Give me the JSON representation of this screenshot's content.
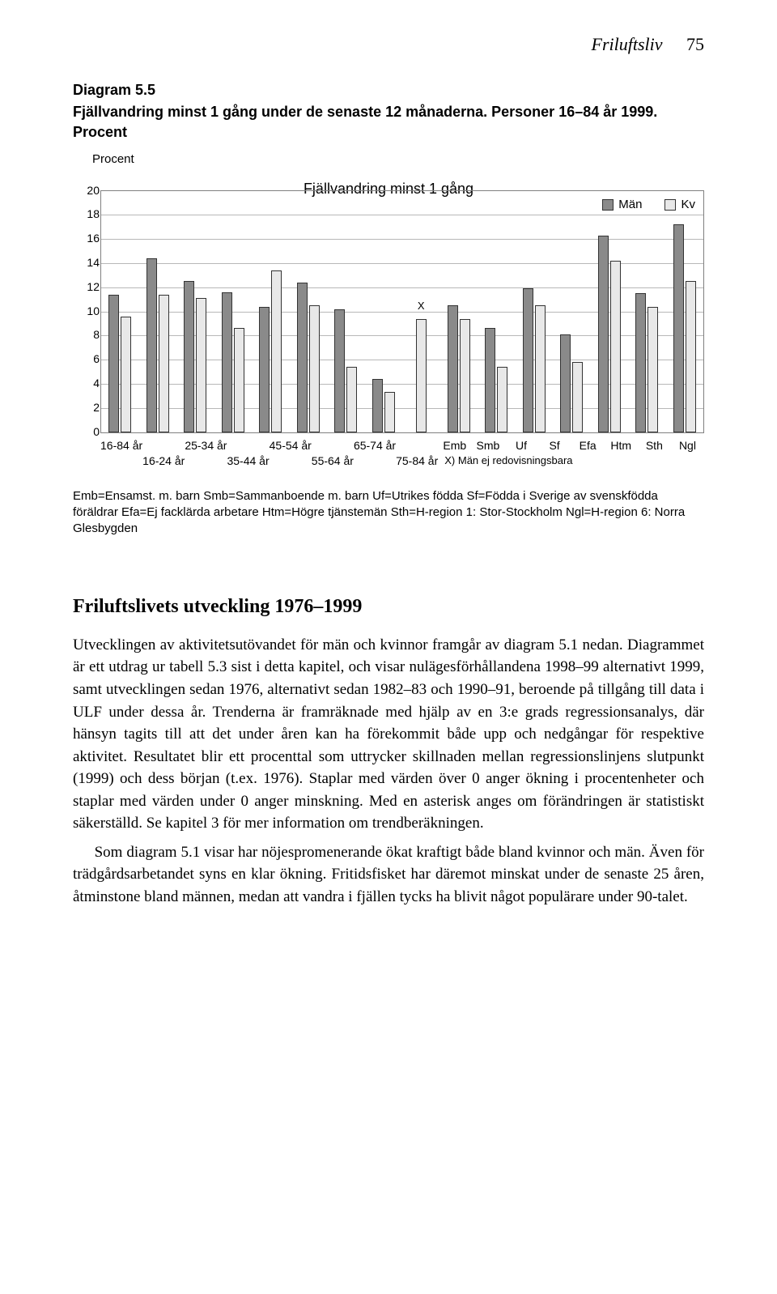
{
  "header": {
    "running": "Friluftsliv",
    "page": "75"
  },
  "diagram": {
    "number": "Diagram 5.5",
    "caption": "Fjällvandring minst 1 gång under de senaste 12 månaderna. Personer 16–84 år 1999. Procent",
    "inner_title": "Fjällvandring minst 1 gång",
    "y_label": "Procent",
    "y_max": 20,
    "y_step": 2,
    "legend": {
      "man": "Män",
      "kv": "Kv"
    },
    "categories": [
      {
        "label": "16-84 år",
        "man": 11.4,
        "kv": 9.6
      },
      {
        "label": "16-24 år",
        "man": 14.4,
        "kv": 11.4
      },
      {
        "label": "25-34 år",
        "man": 12.5,
        "kv": 11.1
      },
      {
        "label": "35-44 år",
        "man": 11.6,
        "kv": 8.6
      },
      {
        "label": "45-54 år",
        "man": 10.4,
        "kv": 13.4
      },
      {
        "label": "55-64 år",
        "man": 12.4,
        "kv": 10.5
      },
      {
        "label": "65-74 år",
        "man": 10.2,
        "kv": 5.4
      },
      {
        "label": "75-84 år",
        "man": 4.4,
        "kv": 3.3
      },
      {
        "label": "Emb",
        "man": null,
        "kv": 9.4,
        "x_note": "X"
      },
      {
        "label": "Smb",
        "man": 10.5,
        "kv": 9.4
      },
      {
        "label": "Uf",
        "man": 8.6,
        "kv": 5.4
      },
      {
        "label": "Sf",
        "man": 11.9,
        "kv": 10.5
      },
      {
        "label": "Efa",
        "man": 8.1,
        "kv": 5.8
      },
      {
        "label": "Htm",
        "man": 16.3,
        "kv": 14.2
      },
      {
        "label": "Sth",
        "man": 11.5,
        "kv": 10.4
      },
      {
        "label": "Ngl",
        "man": 17.2,
        "kv": 12.5
      }
    ],
    "colors": {
      "man": "#8a8a8a",
      "kv": "#e8e8e8",
      "grid": "#b8b8b8",
      "border": "#808080",
      "background": "#ffffff"
    },
    "x_redov_note": "X) Män ej redovisningsbara"
  },
  "key": "Emb=Ensamst. m. barn   Smb=Sammanboende m. barn   Uf=Utrikes födda   Sf=Födda i Sverige av svenskfödda föräldrar   Efa=Ej facklärda arbetare   Htm=Högre tjänstemän   Sth=H-region 1: Stor-Stockholm   Ngl=H-region 6: Norra Glesbygden",
  "section": {
    "heading": "Friluftslivets utveckling 1976–1999",
    "p1": "Utvecklingen av aktivitetsutövandet för män och kvinnor framgår av diagram 5.1 nedan. Diagrammet är ett utdrag ur tabell 5.3 sist i detta kapitel, och visar nulägesförhållandena 1998–99 alternativt 1999, samt utvecklingen sedan 1976, alternativt sedan 1982–83 och 1990–91, beroende på tillgång till data i ULF under dessa år. Trenderna är framräknade med hjälp av en 3:e grads regressionsanalys, där hänsyn tagits till att det under åren kan ha förekommit både upp och nedgångar för respektive aktivitet. Resultatet blir ett procenttal som uttrycker skillnaden mellan regressionslinjens slutpunkt (1999) och dess början (t.ex. 1976). Staplar med värden över 0 anger ökning i procentenheter och staplar med värden under 0 anger minskning. Med en asterisk anges om förändringen är statistiskt säkerställd. Se kapitel 3 för mer information om trendberäkningen.",
    "p2": "Som diagram 5.1 visar har nöjespromenerande ökat kraftigt både bland kvinnor och män. Även för trädgårdsarbetandet syns en klar ökning. Fritidsfisket har däremot minskat under de senaste 25 åren, åtminstone bland männen, medan att vandra i fjällen tycks ha blivit något populärare under 90-talet."
  }
}
